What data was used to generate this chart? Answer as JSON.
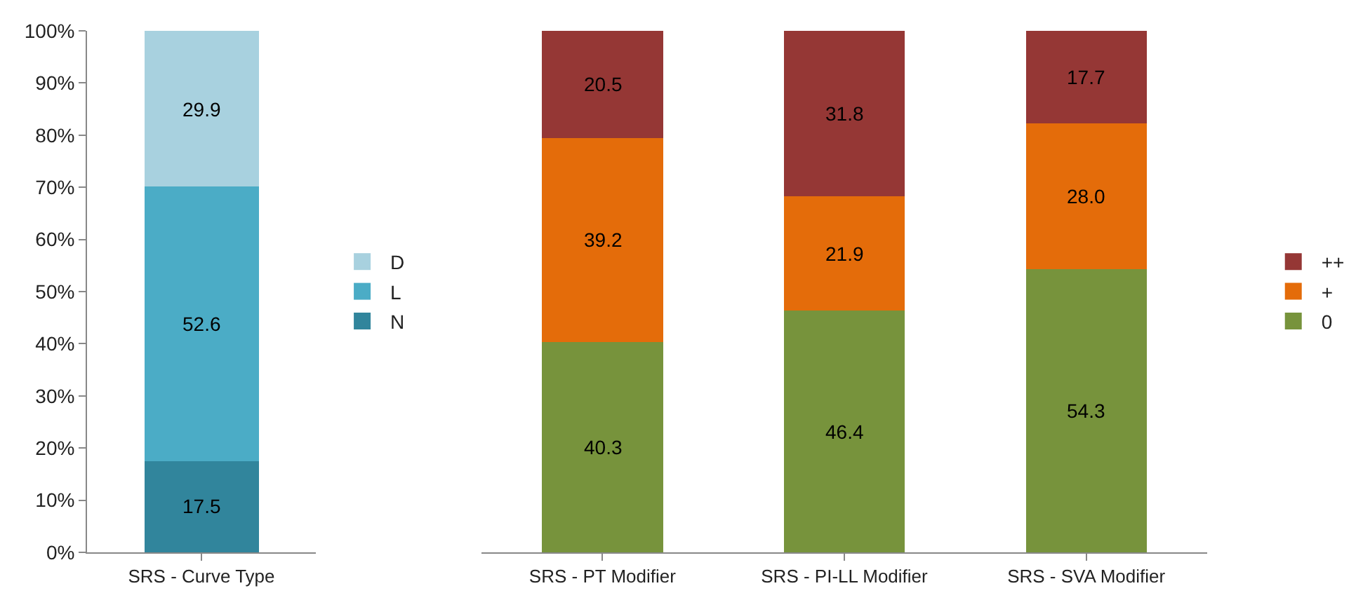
{
  "chart_data": [
    {
      "type": "bar",
      "stacked": true,
      "categories": [
        "SRS - Curve Type"
      ],
      "ylim": [
        0,
        100
      ],
      "yticks": [
        {
          "value": 0,
          "label": "0%"
        },
        {
          "value": 10,
          "label": "10%"
        },
        {
          "value": 20,
          "label": "20%"
        },
        {
          "value": 30,
          "label": "30%"
        },
        {
          "value": 40,
          "label": "40%"
        },
        {
          "value": 50,
          "label": "50%"
        },
        {
          "value": 60,
          "label": "60%"
        },
        {
          "value": 70,
          "label": "70%"
        },
        {
          "value": 80,
          "label": "80%"
        },
        {
          "value": 90,
          "label": "90%"
        },
        {
          "value": 100,
          "label": "100%"
        }
      ],
      "grid": false,
      "legend": "right",
      "series": [
        {
          "name": "N",
          "color": "#31859c",
          "values": [
            17.5
          ],
          "value_labels": [
            "17.5"
          ]
        },
        {
          "name": "L",
          "color": "#4bacc6",
          "values": [
            52.6
          ],
          "value_labels": [
            "52.6"
          ]
        },
        {
          "name": "D",
          "color": "#a8d1df",
          "values": [
            29.9
          ],
          "value_labels": [
            "29.9"
          ]
        }
      ]
    },
    {
      "type": "bar",
      "stacked": true,
      "categories": [
        "SRS - PT Modifier",
        "SRS - PI-LL Modifier",
        "SRS - SVA Modifier"
      ],
      "ylim": [
        0,
        100
      ],
      "tick_labels": "x",
      "grid": false,
      "legend": "right",
      "series": [
        {
          "name": "0",
          "color": "#77933c",
          "values": [
            40.3,
            46.4,
            54.3
          ],
          "value_labels": [
            "40.3",
            "46.4",
            "54.3"
          ]
        },
        {
          "name": "+",
          "color": "#e46c0a",
          "values": [
            39.2,
            21.9,
            28.0
          ],
          "value_labels": [
            "39.2",
            "21.9",
            "28.0"
          ]
        },
        {
          "name": "++",
          "color": "#953735",
          "values": [
            20.5,
            31.8,
            17.7
          ],
          "value_labels": [
            "20.5",
            "31.8",
            "17.7"
          ]
        }
      ]
    }
  ]
}
